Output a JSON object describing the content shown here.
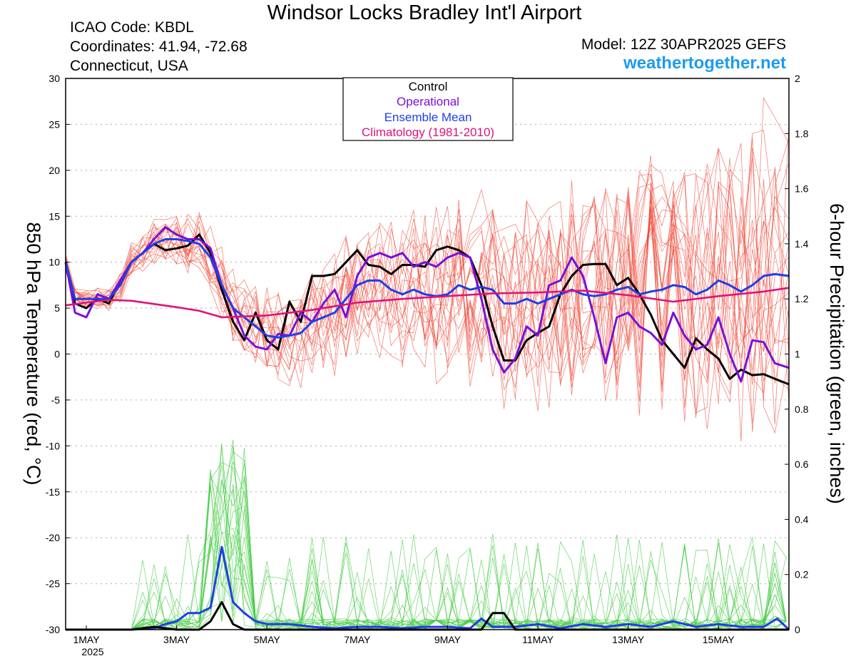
{
  "header": {
    "title": "Windsor Locks Bradley Int'l Airport",
    "icao": "ICAO Code: KBDL",
    "coordinates": "Coordinates: 41.94, -72.68",
    "region": "Connecticut, USA",
    "model": "Model: 12Z 30APR2025 GEFS",
    "website": "weathertogether.net"
  },
  "colors": {
    "members_temp": "#f04a3a",
    "members_precip": "#44cc44",
    "control": "#000000",
    "operational": "#7a10d8",
    "ensemble_mean": "#1f3ee8",
    "climatology": "#e0127a",
    "website": "#1e9bf0"
  },
  "chart_data": {
    "type": "line",
    "x_label_year": "2025",
    "x_ticks": [
      {
        "day": 1,
        "label": "1MAY"
      },
      {
        "day": 3,
        "label": "3MAY"
      },
      {
        "day": 5,
        "label": "5MAY"
      },
      {
        "day": 7,
        "label": "7MAY"
      },
      {
        "day": 9,
        "label": "9MAY"
      },
      {
        "day": 11,
        "label": "11MAY"
      },
      {
        "day": 13,
        "label": "13MAY"
      },
      {
        "day": 15,
        "label": "15MAY"
      }
    ],
    "xlim": [
      0.5,
      16.6
    ],
    "ylabel_left": "850 hPa Temperature (red, °C)",
    "ylabel_right": "6-hour Precipitation (green, inches)",
    "ylim_left": [
      -30,
      30
    ],
    "ylim_right": [
      0,
      2
    ],
    "yticks_left": [
      -30,
      -25,
      -20,
      -15,
      -10,
      -5,
      0,
      5,
      10,
      15,
      20,
      25,
      30
    ],
    "yticks_right": [
      "0",
      "0.2",
      "0.4",
      "0.6",
      "0.8",
      "1",
      "1.2",
      "1.4",
      "1.6",
      "1.8",
      "2"
    ],
    "grid": true,
    "legend_position": "top-center",
    "legend": [
      "Control",
      "Operational",
      "Ensemble Mean",
      "Climatology (1981-2010)"
    ],
    "series": [
      {
        "name": "Control",
        "axis": "left",
        "x": [
          0.5,
          0.75,
          1.0,
          1.25,
          1.5,
          1.75,
          2.0,
          2.25,
          2.5,
          2.75,
          3.0,
          3.25,
          3.5,
          3.75,
          4.0,
          4.25,
          4.5,
          4.75,
          5.0,
          5.25,
          5.5,
          5.75,
          6.0,
          6.25,
          6.5,
          6.75,
          7.0,
          7.25,
          7.5,
          7.75,
          8.0,
          8.25,
          8.5,
          8.75,
          9.0,
          9.25,
          9.5,
          9.75,
          10.0,
          10.25,
          10.5,
          10.75,
          11.0,
          11.25,
          11.5,
          11.75,
          12.0,
          12.25,
          12.5,
          12.75,
          13.0,
          13.25,
          13.5,
          13.75,
          14.0,
          14.25,
          14.5,
          14.75,
          15.0,
          15.25,
          15.5,
          15.75,
          16.0,
          16.25,
          16.6
        ],
        "values": [
          10,
          5.5,
          5,
          6,
          5.5,
          8,
          10,
          11,
          12,
          11.3,
          11.5,
          11.8,
          13,
          11,
          7,
          3.5,
          1.5,
          4.5,
          1.5,
          0.5,
          5.7,
          3.5,
          8.5,
          8.5,
          8.7,
          10,
          11.3,
          9.7,
          9.5,
          8.7,
          9.7,
          9.7,
          9.5,
          11.3,
          11.7,
          11.3,
          10.5,
          7.5,
          3,
          -0.7,
          -0.7,
          1.5,
          2.3,
          3,
          6.5,
          8.5,
          9.7,
          9.8,
          9.8,
          7.5,
          8.3,
          6.5,
          4.3,
          1.5,
          0,
          -1.5,
          1.7,
          0.5,
          -0.5,
          -2.7,
          -1.7,
          -2.3,
          -2.2,
          -2.7,
          -3.3
        ]
      },
      {
        "name": "Operational",
        "axis": "left",
        "x": [
          0.5,
          0.75,
          1.0,
          1.25,
          1.5,
          1.75,
          2.0,
          2.25,
          2.5,
          2.75,
          3.0,
          3.25,
          3.5,
          3.75,
          4.0,
          4.25,
          4.5,
          4.75,
          5.0,
          5.25,
          5.5,
          5.75,
          6.0,
          6.25,
          6.5,
          6.75,
          7.0,
          7.25,
          7.5,
          7.75,
          8.0,
          8.25,
          8.5,
          8.75,
          9.0,
          9.25,
          9.5,
          9.75,
          10.0,
          10.25,
          10.5,
          10.75,
          11.0,
          11.25,
          11.5,
          11.75,
          12.0,
          12.25,
          12.5,
          12.75,
          13.0,
          13.25,
          13.5,
          13.75,
          14.0,
          14.25,
          14.5,
          14.75,
          15.0,
          15.25,
          15.5,
          15.75,
          16.0,
          16.25,
          16.6
        ],
        "values": [
          10,
          4.5,
          4,
          6.5,
          6,
          8,
          10,
          11,
          12.5,
          13.8,
          13,
          12.5,
          12.5,
          11.5,
          7.5,
          5,
          2,
          0.8,
          0.5,
          2.2,
          2,
          4.5,
          3.5,
          5.5,
          7,
          4,
          8.5,
          10.5,
          11,
          10.5,
          11,
          9.5,
          10,
          9.5,
          10.5,
          11,
          10.5,
          6,
          0.5,
          -2,
          -0.5,
          3,
          2,
          7.5,
          8,
          10.5,
          8.5,
          4,
          -1,
          4,
          4.5,
          3,
          2.3,
          1,
          4.5,
          2,
          0.5,
          1,
          4,
          0,
          -3,
          1.5,
          1.3,
          -1,
          -1.5
        ]
      },
      {
        "name": "Ensemble Mean",
        "axis": "left",
        "x": [
          0.5,
          0.75,
          1.0,
          1.25,
          1.5,
          1.75,
          2.0,
          2.25,
          2.5,
          2.75,
          3.0,
          3.25,
          3.5,
          3.75,
          4.0,
          4.25,
          4.5,
          4.75,
          5.0,
          5.25,
          5.5,
          5.75,
          6.0,
          6.25,
          6.5,
          6.75,
          7.0,
          7.25,
          7.5,
          7.75,
          8.0,
          8.25,
          8.5,
          8.75,
          9.0,
          9.25,
          9.5,
          9.75,
          10.0,
          10.25,
          10.5,
          10.75,
          11.0,
          11.25,
          11.5,
          11.75,
          12.0,
          12.25,
          12.5,
          12.75,
          13.0,
          13.25,
          13.5,
          13.75,
          14.0,
          14.25,
          14.5,
          14.75,
          15.0,
          15.25,
          15.5,
          15.75,
          16.0,
          16.25,
          16.6
        ],
        "values": [
          10,
          6,
          6,
          6,
          6,
          7.5,
          10,
          11,
          12,
          12.5,
          12.5,
          12.3,
          12,
          10.5,
          7.5,
          5,
          4,
          3,
          2,
          1.8,
          2,
          2.3,
          3.5,
          4,
          4.5,
          6,
          7.5,
          8,
          8,
          7,
          6.5,
          7,
          6.5,
          6.3,
          6.5,
          7.5,
          7,
          7.3,
          7,
          5.5,
          5.5,
          6,
          5.5,
          6,
          6.5,
          7,
          6.5,
          6.3,
          6.5,
          7,
          7.3,
          6.5,
          6.8,
          7,
          7.5,
          7.3,
          6.5,
          7,
          8,
          7.5,
          6.8,
          7.5,
          8.5,
          8.7,
          8.5
        ]
      },
      {
        "name": "Climatology (1981-2010)",
        "axis": "left",
        "x": [
          0.5,
          1.0,
          1.5,
          2.0,
          3.0,
          3.5,
          4.0,
          5.0,
          6.0,
          7.0,
          8.0,
          9.0,
          10.0,
          11.0,
          12.0,
          13.0,
          14.0,
          15.0,
          16.0,
          16.6
        ],
        "values": [
          5.3,
          5.6,
          5.9,
          5.8,
          5.1,
          4.7,
          4,
          4.2,
          4.8,
          5.6,
          6.0,
          6.3,
          6.6,
          6.7,
          6.9,
          6.4,
          5.7,
          6.3,
          6.8,
          7.2
        ]
      },
      {
        "name": "Ensemble Mean",
        "axis": "right",
        "x": [
          0.5,
          1.0,
          1.5,
          2.0,
          2.5,
          2.75,
          3.0,
          3.25,
          3.5,
          3.75,
          4.0,
          4.25,
          4.5,
          4.75,
          5.0,
          5.5,
          6.0,
          6.5,
          7.0,
          7.5,
          8.0,
          8.5,
          9.0,
          9.5,
          9.75,
          10.0,
          10.5,
          11.0,
          11.5,
          12.0,
          12.5,
          13.0,
          13.5,
          14.0,
          14.5,
          15.0,
          15.5,
          16.0,
          16.3,
          16.6
        ],
        "values": [
          0,
          0,
          0,
          0,
          0.005,
          0.02,
          0.03,
          0.06,
          0.06,
          0.08,
          0.3,
          0.1,
          0.06,
          0.03,
          0.02,
          0.02,
          0.01,
          0.005,
          0.01,
          0.01,
          0.005,
          0.01,
          0.01,
          0.005,
          0.04,
          0.01,
          0.01,
          0.02,
          0.005,
          0.02,
          0.01,
          0.02,
          0.01,
          0.03,
          0.01,
          0.02,
          0.01,
          0.01,
          0.04,
          0
        ]
      },
      {
        "name": "Control",
        "axis": "right",
        "x": [
          0.5,
          1.0,
          2.0,
          2.5,
          3.0,
          3.5,
          3.75,
          4.0,
          4.25,
          4.5,
          5.0,
          9.75,
          10.0,
          10.25,
          10.5,
          16.6
        ],
        "values": [
          0,
          0,
          0,
          0.01,
          0,
          0,
          0.03,
          0.1,
          0.02,
          0,
          0,
          0,
          0.06,
          0.06,
          0,
          0
        ]
      }
    ]
  }
}
